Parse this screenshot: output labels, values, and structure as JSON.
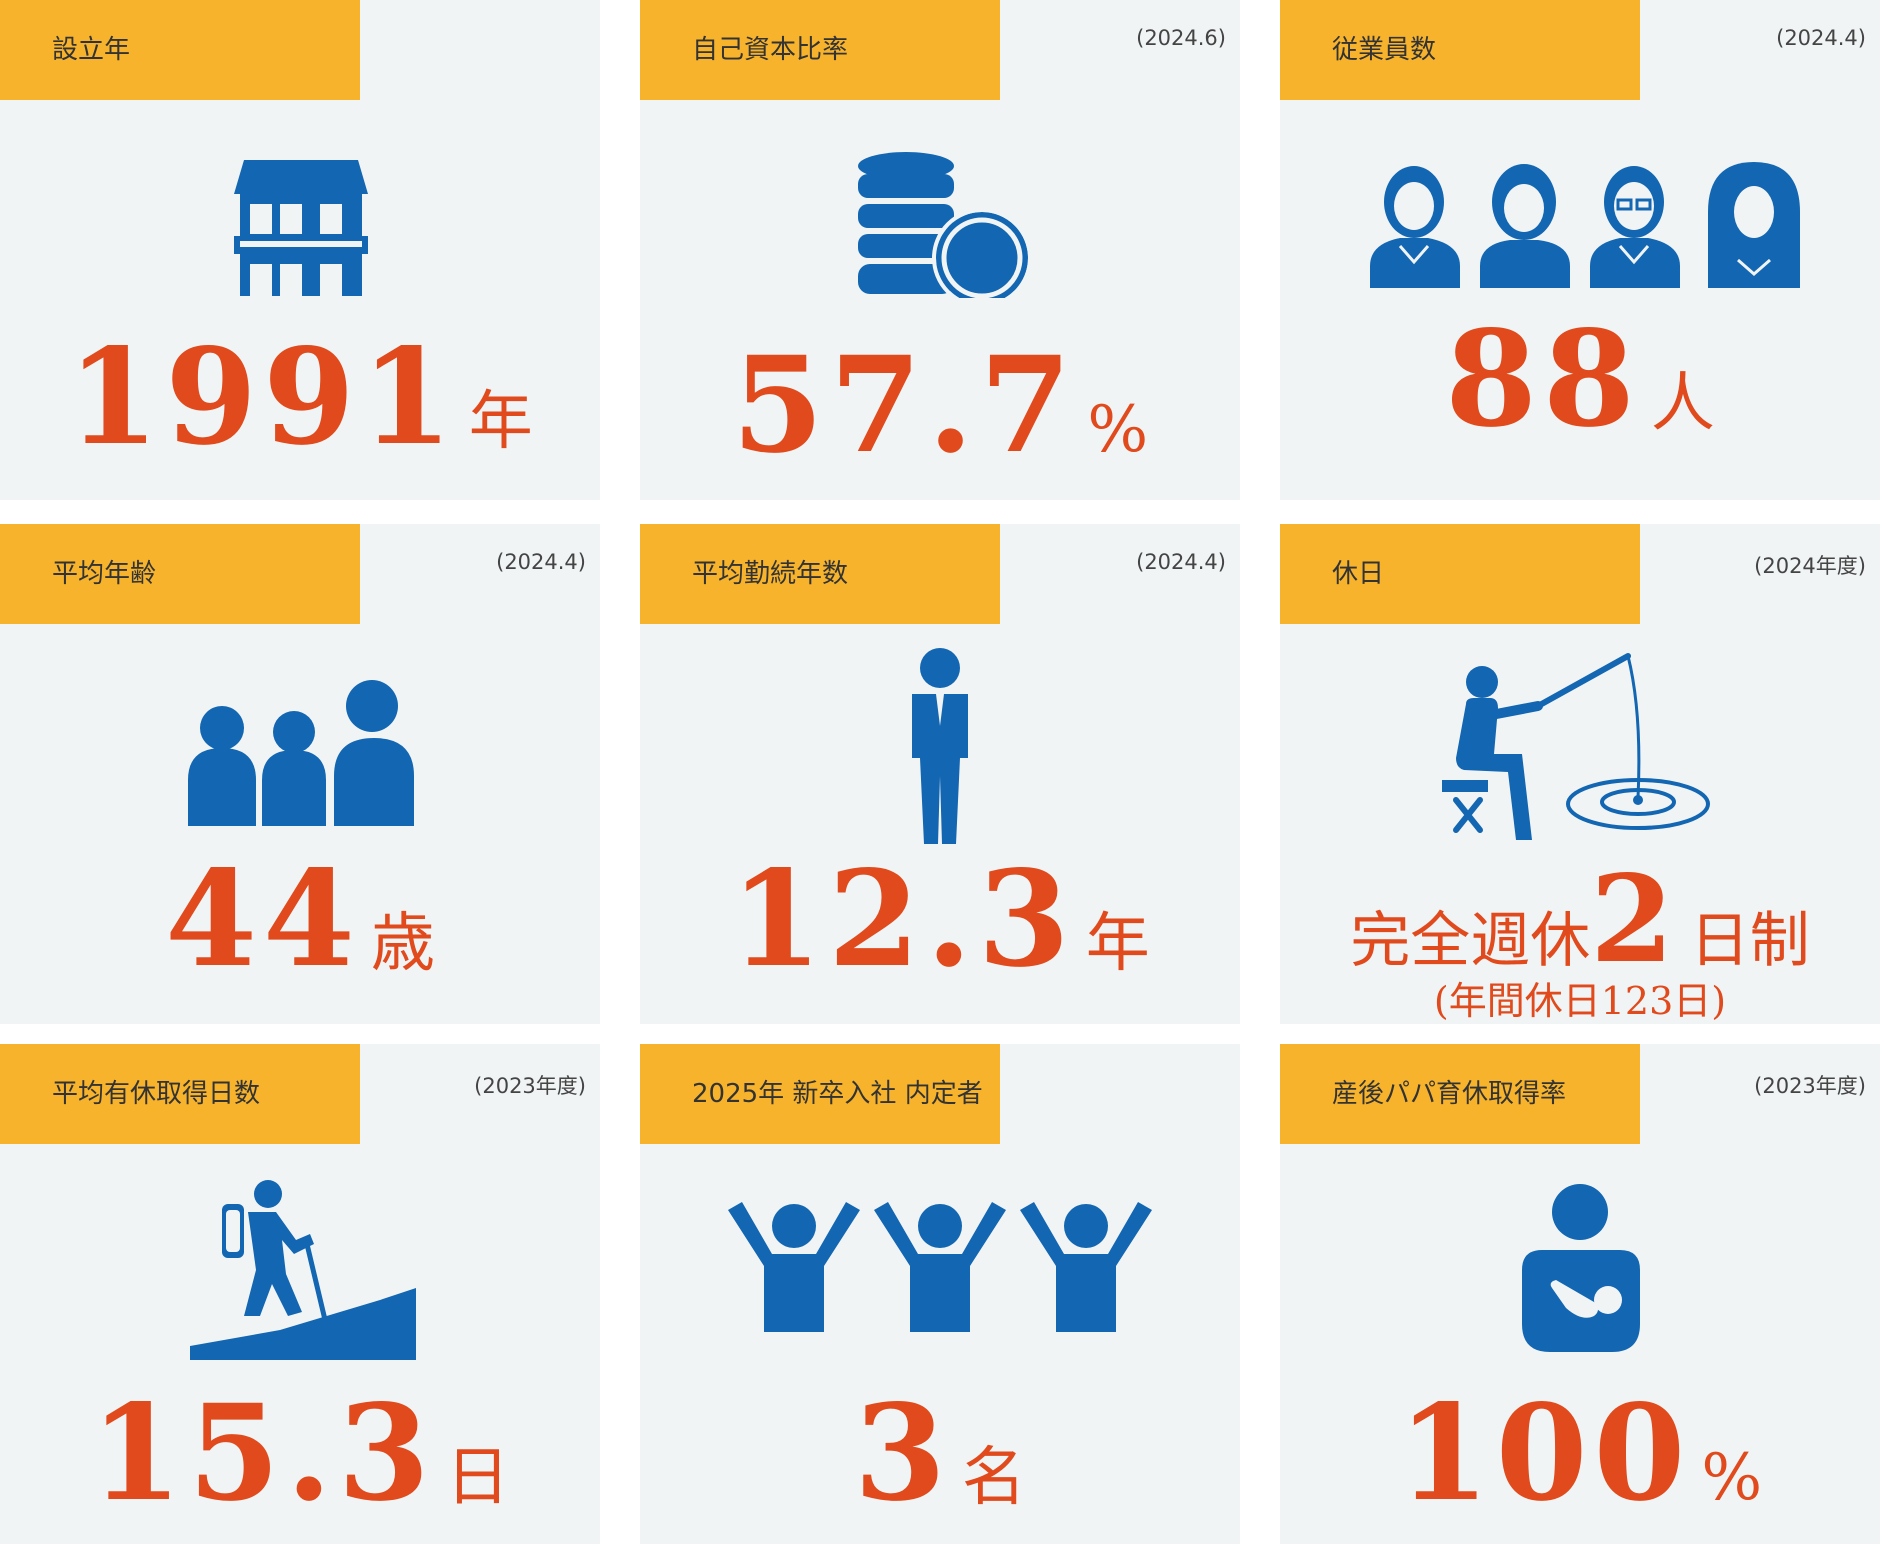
{
  "colors": {
    "tag": "#f7b32c",
    "card": "#f1f4f5",
    "icon": "#1266b2",
    "value": "#e04a1c"
  },
  "cards": [
    {
      "label": "設立年",
      "date": "",
      "value": "1991",
      "unit": "年",
      "icon": "house-icon"
    },
    {
      "label": "自己資本比率",
      "date": "(2024.6)",
      "value": "57.7",
      "unit": "%",
      "icon": "coins-icon"
    },
    {
      "label": "従業員数",
      "date": "(2024.4)",
      "value": "88",
      "unit": "人",
      "icon": "employees-icon"
    },
    {
      "label": "平均年齢",
      "date": "(2024.4)",
      "value": "44",
      "unit": "歳",
      "icon": "group-icon"
    },
    {
      "label": "平均勤続年数",
      "date": "(2024.4)",
      "value": "12.3",
      "unit": "年",
      "icon": "businessman-icon"
    },
    {
      "label": "休日",
      "date": "(2024年度)",
      "prefix": "完全週休",
      "value": "2",
      "unit": "日制",
      "sub": "(年間休日123日)",
      "icon": "fishing-icon"
    },
    {
      "label": "平均有休取得日数",
      "date": "(2023年度)",
      "value": "15.3",
      "unit": "日",
      "icon": "hiker-icon"
    },
    {
      "label": "2025年 新卒入社 内定者",
      "date": "",
      "value": "3",
      "unit": "名",
      "icon": "cheering-people-icon"
    },
    {
      "label": "産後パパ育休取得率",
      "date": "(2023年度)",
      "value": "100",
      "unit": "%",
      "icon": "parent-baby-icon"
    }
  ]
}
